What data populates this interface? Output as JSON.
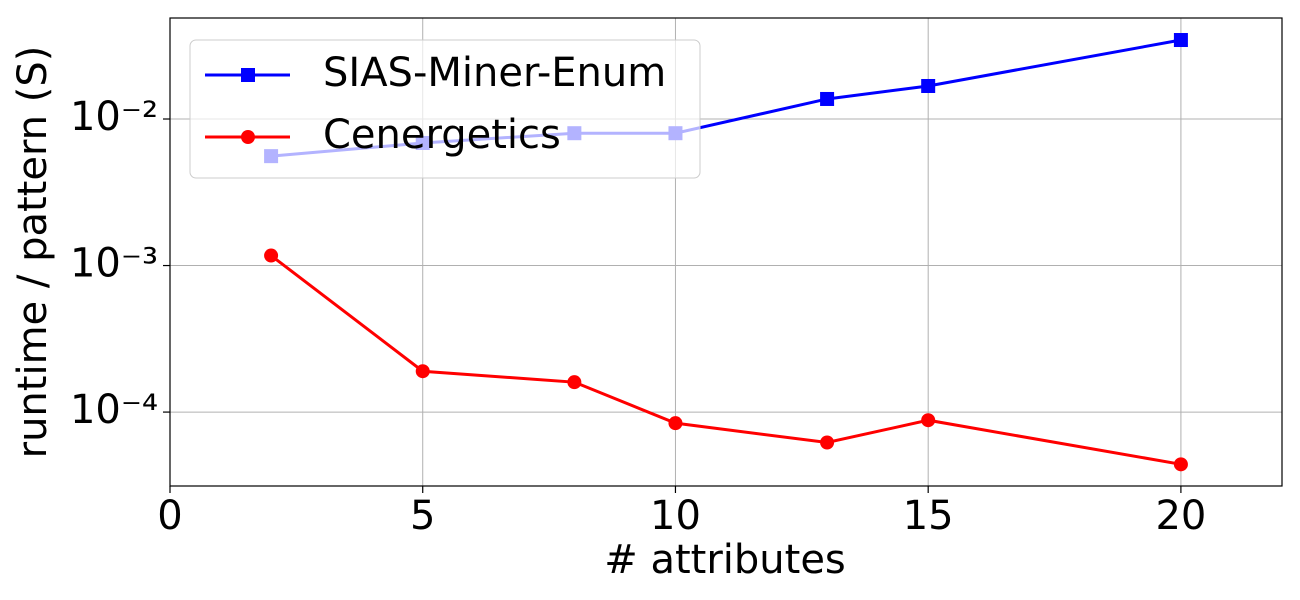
{
  "chart_data": {
    "type": "line",
    "x_label": "# attributes",
    "y_label": "runtime / pattern (S)",
    "x": [
      2,
      5,
      8,
      10,
      13,
      15,
      20
    ],
    "series": [
      {
        "name": "SIAS-Miner-Enum",
        "color": "#0000ff",
        "marker": "square",
        "values": [
          0.00558,
          0.00686,
          0.008,
          0.008,
          0.0137,
          0.0168,
          0.0346
        ]
      },
      {
        "name": "Cenergetics",
        "color": "#ff0000",
        "marker": "circle",
        "values": [
          0.00117,
          0.00019,
          0.00016,
          8.4e-05,
          6.2e-05,
          8.8e-05,
          4.4e-05
        ]
      }
    ],
    "xlim": [
      0,
      22
    ],
    "xticks": [
      0,
      5,
      10,
      15,
      20
    ],
    "ylim": [
      3.13e-05,
      0.0489
    ],
    "yticks": [
      {
        "value": 0.0001,
        "label": "10⁻⁴"
      },
      {
        "value": 0.001,
        "label": "10⁻³"
      },
      {
        "value": 0.01,
        "label": "10⁻²"
      }
    ],
    "y_scale": "log",
    "grid": true,
    "legend": "upper left"
  }
}
